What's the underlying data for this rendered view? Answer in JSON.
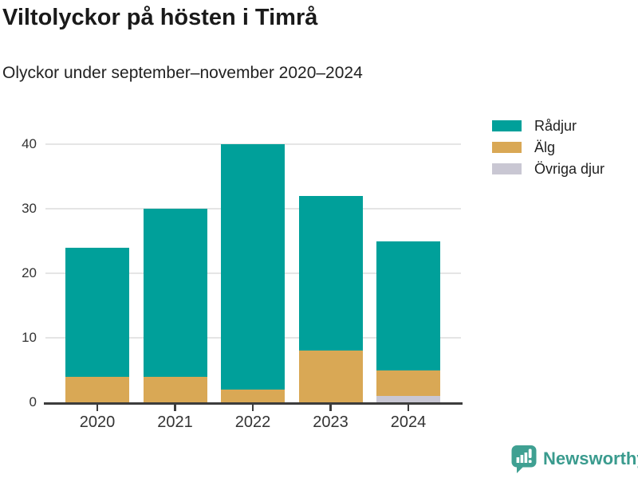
{
  "header": {
    "title": "Viltolyckor på hösten i Timrå",
    "subtitle": "Olyckor under september–november 2020–2024"
  },
  "chart_data": {
    "type": "bar",
    "stacked": true,
    "title": "Viltolyckor på hösten i Timrå",
    "subtitle": "Olyckor under september–november 2020–2024",
    "categories": [
      "2020",
      "2021",
      "2022",
      "2023",
      "2024"
    ],
    "series": [
      {
        "name": "Rådjur",
        "color": "#00a09a",
        "values": [
          20,
          26,
          38,
          24,
          20
        ]
      },
      {
        "name": "Älg",
        "color": "#d9a855",
        "values": [
          4,
          4,
          2,
          8,
          4
        ]
      },
      {
        "name": "Övriga djur",
        "color": "#c9c7d3",
        "values": [
          0,
          0,
          0,
          0,
          1
        ]
      }
    ],
    "stack_totals": [
      24,
      30,
      40,
      32,
      25
    ],
    "xlabel": "",
    "ylabel": "",
    "ylim": [
      0,
      40
    ],
    "yticks": [
      0,
      10,
      20,
      30,
      40
    ],
    "grid": true,
    "legend_position": "right"
  },
  "branding": {
    "name": "Newsworthy",
    "color": "#3a9b8e",
    "icon": "newsworthy-speech-bubble-barchart-icon"
  },
  "colors": {
    "background": "#ffffff",
    "gridline": "#e5e5e5",
    "axis_line": "#3c3c3c",
    "title_text": "#1a1a1a",
    "axis_text": "#333333"
  }
}
